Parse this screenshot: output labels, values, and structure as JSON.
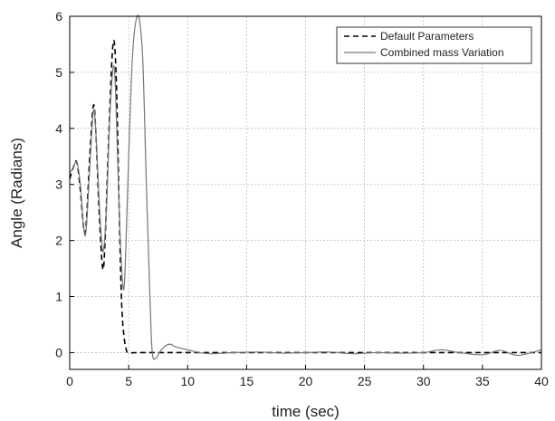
{
  "chart_data": {
    "type": "line",
    "title": "",
    "xlabel": "time (sec)",
    "ylabel": "Angle (Radians)",
    "xlim": [
      0,
      40
    ],
    "ylim": [
      -0.3,
      6
    ],
    "xticks": [
      0,
      5,
      10,
      15,
      20,
      25,
      30,
      35,
      40
    ],
    "yticks": [
      0,
      1,
      2,
      3,
      4,
      5,
      6
    ],
    "grid": true,
    "legend_position": "top-right",
    "series": [
      {
        "name": "Default Parameters",
        "style": "dashed",
        "color": "#000000",
        "x": [
          0,
          0.3,
          0.6,
          0.9,
          1.2,
          1.4,
          1.7,
          2.0,
          2.2,
          2.5,
          2.8,
          3.0,
          3.3,
          3.6,
          3.8,
          4.0,
          4.2,
          4.4,
          4.6,
          4.8,
          5.0,
          6,
          8,
          10,
          15,
          20,
          25,
          30,
          35,
          40
        ],
        "y": [
          3.1,
          3.3,
          3.4,
          2.9,
          2.2,
          2.3,
          3.5,
          4.4,
          4.0,
          2.5,
          1.5,
          2.0,
          3.8,
          5.3,
          5.5,
          4.5,
          2.5,
          0.9,
          0.3,
          0.05,
          0.0,
          0.0,
          0.0,
          0.0,
          0.0,
          0.0,
          0.0,
          0.0,
          0.0,
          0.0
        ]
      },
      {
        "name": "Combined mass Variation",
        "style": "solid",
        "color": "#777777",
        "x": [
          0,
          0.3,
          0.6,
          0.9,
          1.2,
          1.4,
          1.7,
          2.0,
          2.2,
          2.5,
          2.8,
          3.1,
          3.4,
          3.7,
          3.9,
          4.2,
          4.5,
          4.7,
          5.0,
          5.3,
          5.6,
          5.9,
          6.2,
          6.5,
          6.8,
          7.0,
          7.3,
          7.6,
          8.0,
          8.5,
          9.0,
          10,
          11,
          12,
          14,
          16,
          18,
          20,
          22,
          24,
          26,
          28,
          30,
          31.5,
          33,
          35,
          36.5,
          38,
          40
        ],
        "y": [
          3.2,
          3.3,
          3.4,
          3.0,
          2.2,
          2.2,
          3.3,
          4.3,
          4.0,
          2.7,
          1.8,
          2.5,
          4.2,
          5.1,
          4.6,
          2.5,
          1.2,
          1.5,
          3.5,
          5.2,
          5.9,
          5.95,
          5.2,
          3.0,
          1.0,
          0.0,
          -0.1,
          0.0,
          0.1,
          0.15,
          0.1,
          0.05,
          0.0,
          -0.02,
          0.0,
          0.01,
          -0.01,
          0.0,
          0.01,
          -0.02,
          0.0,
          -0.01,
          0.0,
          0.05,
          0.0,
          -0.04,
          0.04,
          -0.05,
          0.05
        ]
      }
    ]
  }
}
